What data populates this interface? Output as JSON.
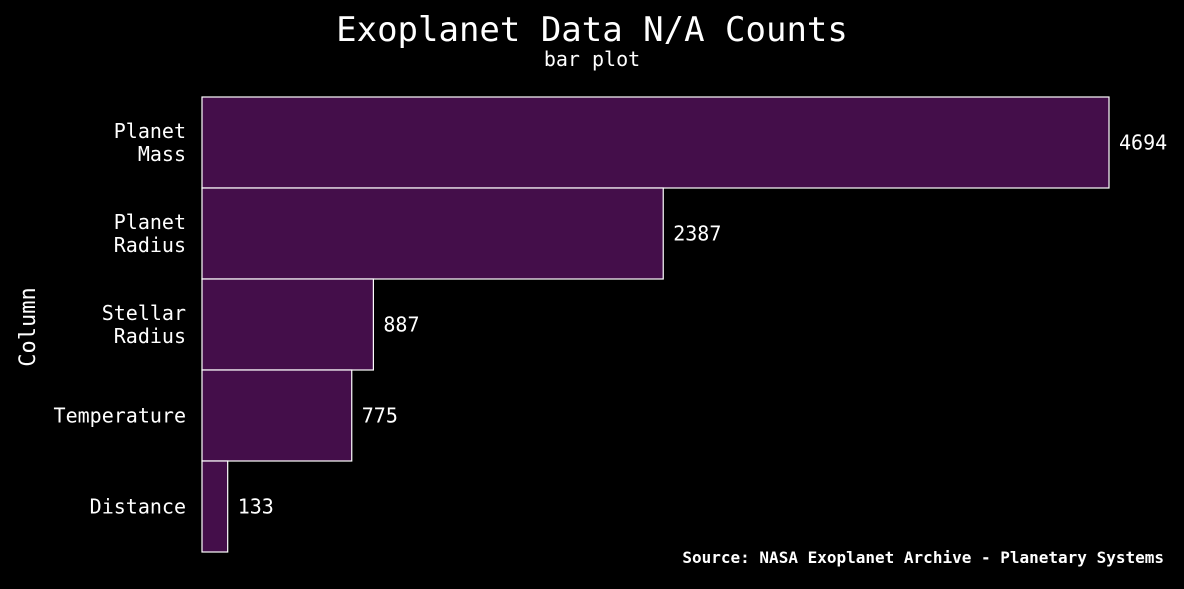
{
  "chart_data": {
    "type": "bar",
    "orientation": "horizontal",
    "title": "Exoplanet Data N/A Counts",
    "subtitle": "bar plot",
    "xlabel": "",
    "ylabel": "Column",
    "categories": [
      [
        "Planet",
        "Mass"
      ],
      [
        "Planet",
        "Radius"
      ],
      [
        "Stellar",
        "Radius"
      ],
      [
        "Temperature"
      ],
      [
        "Distance"
      ]
    ],
    "values": [
      4694,
      2387,
      887,
      775,
      133
    ],
    "value_labels": [
      "4694",
      "2387",
      "887",
      "775",
      "133"
    ],
    "xlim": [
      0,
      4694
    ],
    "grid": false,
    "legend": "none",
    "colors": {
      "bar": "#440e4a",
      "edge": "#ffffff",
      "background": "#000000",
      "text": "#ffffff"
    },
    "source": "Source: NASA Exoplanet Archive - Planetary Systems"
  }
}
